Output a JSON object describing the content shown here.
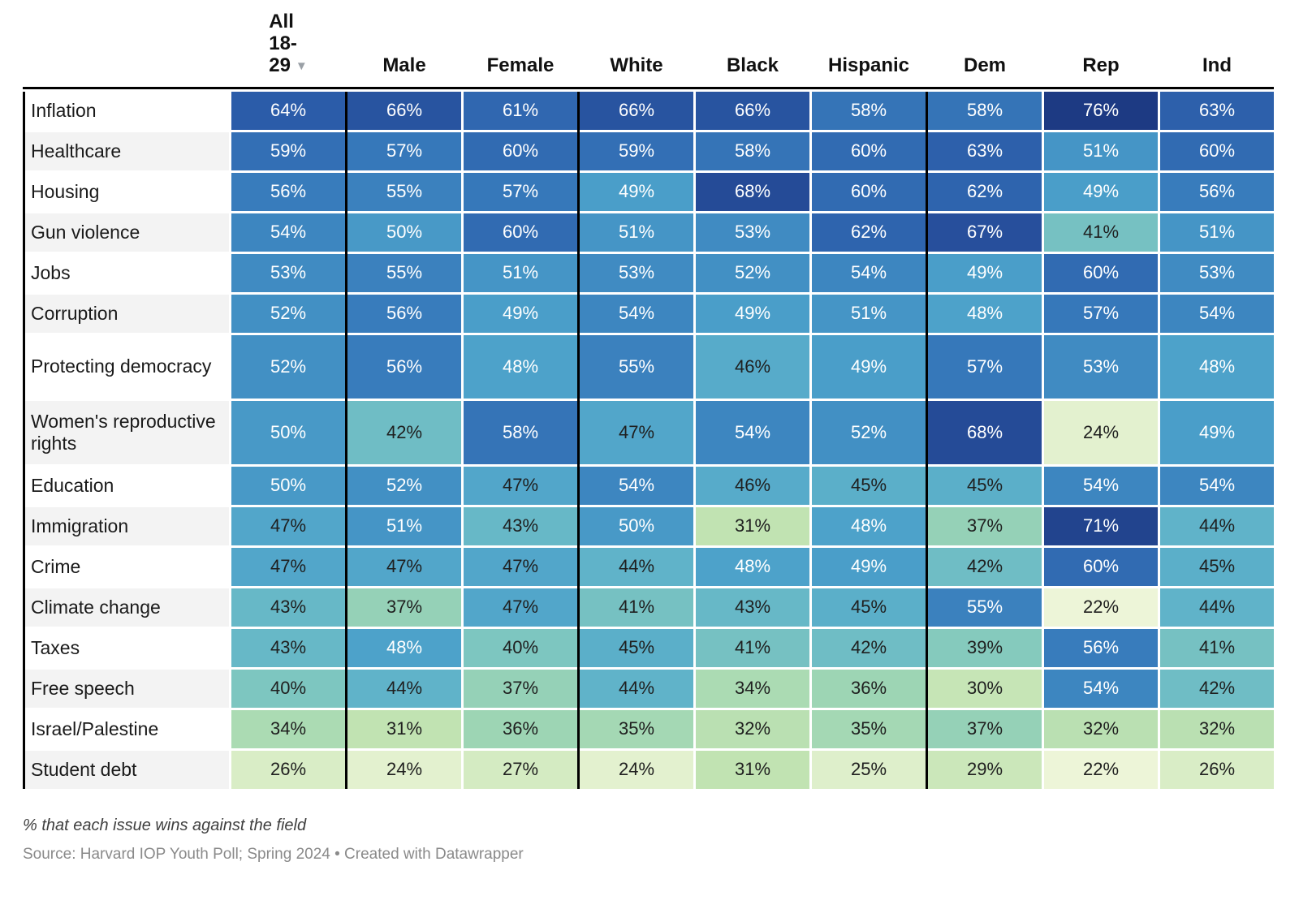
{
  "header": {
    "columns": [
      {
        "id": "all-18-29",
        "label": "All 18-29",
        "lines": [
          "All",
          "18-",
          "29"
        ],
        "sort_arrow": "▼"
      },
      {
        "id": "male",
        "label": "Male"
      },
      {
        "id": "female",
        "label": "Female"
      },
      {
        "id": "white",
        "label": "White"
      },
      {
        "id": "black",
        "label": "Black"
      },
      {
        "id": "hispanic",
        "label": "Hispanic"
      },
      {
        "id": "dem",
        "label": "Dem"
      },
      {
        "id": "rep",
        "label": "Rep"
      },
      {
        "id": "ind",
        "label": "Ind"
      }
    ]
  },
  "rows": [
    {
      "label": "Inflation",
      "values": [
        64,
        66,
        61,
        66,
        66,
        58,
        58,
        76,
        63
      ]
    },
    {
      "label": "Healthcare",
      "values": [
        59,
        57,
        60,
        59,
        58,
        60,
        63,
        51,
        60
      ]
    },
    {
      "label": "Housing",
      "values": [
        56,
        55,
        57,
        49,
        68,
        60,
        62,
        49,
        56
      ]
    },
    {
      "label": "Gun violence",
      "values": [
        54,
        50,
        60,
        51,
        53,
        62,
        67,
        41,
        51
      ]
    },
    {
      "label": "Jobs",
      "values": [
        53,
        55,
        51,
        53,
        52,
        54,
        49,
        60,
        53
      ]
    },
    {
      "label": "Corruption",
      "values": [
        52,
        56,
        49,
        54,
        49,
        51,
        48,
        57,
        54
      ]
    },
    {
      "label": "Protecting democracy",
      "values": [
        52,
        56,
        48,
        55,
        46,
        49,
        57,
        53,
        48
      ]
    },
    {
      "label": "Women's reproductive rights",
      "values": [
        50,
        42,
        58,
        47,
        54,
        52,
        68,
        24,
        49
      ]
    },
    {
      "label": "Education",
      "values": [
        50,
        52,
        47,
        54,
        46,
        45,
        45,
        54,
        54
      ]
    },
    {
      "label": "Immigration",
      "values": [
        47,
        51,
        43,
        50,
        31,
        48,
        37,
        71,
        44
      ]
    },
    {
      "label": "Crime",
      "values": [
        47,
        47,
        47,
        44,
        48,
        49,
        42,
        60,
        45
      ]
    },
    {
      "label": "Climate change",
      "values": [
        43,
        37,
        47,
        41,
        43,
        45,
        55,
        22,
        44
      ]
    },
    {
      "label": "Taxes",
      "values": [
        43,
        48,
        40,
        45,
        41,
        42,
        39,
        56,
        41
      ]
    },
    {
      "label": "Free speech",
      "values": [
        40,
        44,
        37,
        44,
        34,
        36,
        30,
        54,
        42
      ]
    },
    {
      "label": "Israel/Palestine",
      "values": [
        34,
        31,
        36,
        35,
        32,
        35,
        37,
        32,
        32
      ]
    },
    {
      "label": "Student debt",
      "values": [
        26,
        24,
        27,
        24,
        31,
        25,
        29,
        22,
        26
      ]
    }
  ],
  "footer": {
    "note": "% that each issue wins against the field",
    "source": "Source: Harvard IOP Youth Poll; Spring 2024 • Created with Datawrapper"
  },
  "style": {
    "separator_color": "#000000",
    "label_alt_bg": "#f3f3f3",
    "cell_text_dark": "#1f1f1f",
    "cell_text_light": "#ffffff",
    "white_text_threshold": 48,
    "color_stops": [
      [
        22,
        "#edf5d8"
      ],
      [
        26,
        "#d9edc6"
      ],
      [
        31,
        "#c1e3b2"
      ],
      [
        36,
        "#9dd5b4"
      ],
      [
        40,
        "#7dc6c0"
      ],
      [
        44,
        "#60b3c9"
      ],
      [
        48,
        "#4da2ca"
      ],
      [
        52,
        "#4290c4"
      ],
      [
        56,
        "#387cbc"
      ],
      [
        60,
        "#316bb2"
      ],
      [
        64,
        "#2b5ca9"
      ],
      [
        68,
        "#254b97"
      ],
      [
        72,
        "#21418b"
      ],
      [
        76,
        "#1d3a83"
      ]
    ]
  },
  "chart_data": {
    "type": "heatmap",
    "title": "",
    "unit": "%",
    "columns": [
      "All 18-29",
      "Male",
      "Female",
      "White",
      "Black",
      "Hispanic",
      "Dem",
      "Rep",
      "Ind"
    ],
    "column_groups": [
      [
        "All 18-29"
      ],
      [
        "Male",
        "Female"
      ],
      [
        "White",
        "Black",
        "Hispanic"
      ],
      [
        "Dem",
        "Rep",
        "Ind"
      ]
    ],
    "rows": [
      "Inflation",
      "Healthcare",
      "Housing",
      "Gun violence",
      "Jobs",
      "Corruption",
      "Protecting democracy",
      "Women's reproductive rights",
      "Education",
      "Immigration",
      "Crime",
      "Climate change",
      "Taxes",
      "Free speech",
      "Israel/Palestine",
      "Student debt"
    ],
    "values": [
      [
        64,
        66,
        61,
        66,
        66,
        58,
        58,
        76,
        63
      ],
      [
        59,
        57,
        60,
        59,
        58,
        60,
        63,
        51,
        60
      ],
      [
        56,
        55,
        57,
        49,
        68,
        60,
        62,
        49,
        56
      ],
      [
        54,
        50,
        60,
        51,
        53,
        62,
        67,
        41,
        51
      ],
      [
        53,
        55,
        51,
        53,
        52,
        54,
        49,
        60,
        53
      ],
      [
        52,
        56,
        49,
        54,
        49,
        51,
        48,
        57,
        54
      ],
      [
        52,
        56,
        48,
        55,
        46,
        49,
        57,
        53,
        48
      ],
      [
        50,
        42,
        58,
        47,
        54,
        52,
        68,
        24,
        49
      ],
      [
        50,
        52,
        47,
        54,
        46,
        45,
        45,
        54,
        54
      ],
      [
        47,
        51,
        43,
        50,
        31,
        48,
        37,
        71,
        44
      ],
      [
        47,
        47,
        47,
        44,
        48,
        49,
        42,
        60,
        45
      ],
      [
        43,
        37,
        47,
        41,
        43,
        45,
        55,
        22,
        44
      ],
      [
        43,
        48,
        40,
        45,
        41,
        42,
        39,
        56,
        41
      ],
      [
        40,
        44,
        37,
        44,
        34,
        36,
        30,
        54,
        42
      ],
      [
        34,
        31,
        36,
        35,
        32,
        35,
        37,
        32,
        32
      ],
      [
        26,
        24,
        27,
        24,
        31,
        25,
        29,
        22,
        26
      ]
    ],
    "value_range": [
      22,
      76
    ],
    "sorted_by": "All 18-29 descending",
    "note": "% that each issue wins against the field",
    "source": "Source: Harvard IOP Youth Poll; Spring 2024 • Created with Datawrapper",
    "legend_position": "none",
    "grid": false
  }
}
